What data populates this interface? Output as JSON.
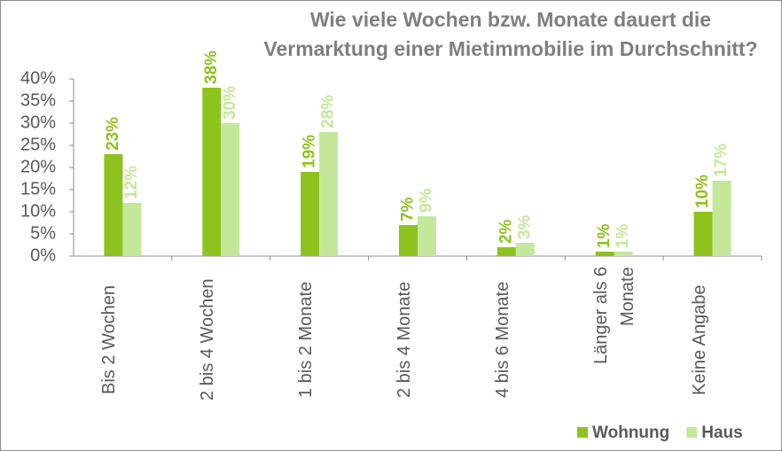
{
  "chart_data": {
    "type": "bar",
    "title": "Wie viele Wochen bzw. Monate dauert die Vermarktung einer Mietimmobilie im Durchschnitt?",
    "categories": [
      "Bis 2 Wochen",
      "2 bis 4 Wochen",
      "1 bis 2 Monate",
      "2 bis 4 Monate",
      "4 bis 6 Monate",
      "Länger als 6 Monate",
      "Keine Angabe"
    ],
    "series": [
      {
        "name": "Wohnung",
        "color": "#8dc21f",
        "label_color": "#8dc21f",
        "values": [
          23,
          38,
          19,
          7,
          2,
          1,
          10
        ],
        "value_labels": [
          "23%",
          "38%",
          "19%",
          "7%",
          "2%",
          "1%",
          "10%"
        ]
      },
      {
        "name": "Haus",
        "color": "#c4e89a",
        "label_color": "#c4e89a",
        "values": [
          12,
          30,
          28,
          9,
          3,
          1,
          17
        ],
        "value_labels": [
          "12%",
          "30%",
          "28%",
          "9%",
          "3%",
          "1%",
          "17%"
        ]
      }
    ],
    "ylim": [
      0,
      40
    ],
    "yticks": [
      {
        "value": 0,
        "label": "0%"
      },
      {
        "value": 5,
        "label": "5%"
      },
      {
        "value": 10,
        "label": "10%"
      },
      {
        "value": 15,
        "label": "15%"
      },
      {
        "value": 20,
        "label": "20%"
      },
      {
        "value": 25,
        "label": "25%"
      },
      {
        "value": 30,
        "label": "30%"
      },
      {
        "value": 35,
        "label": "35%"
      },
      {
        "value": 40,
        "label": "40%"
      }
    ],
    "legend": "bottom-right"
  }
}
